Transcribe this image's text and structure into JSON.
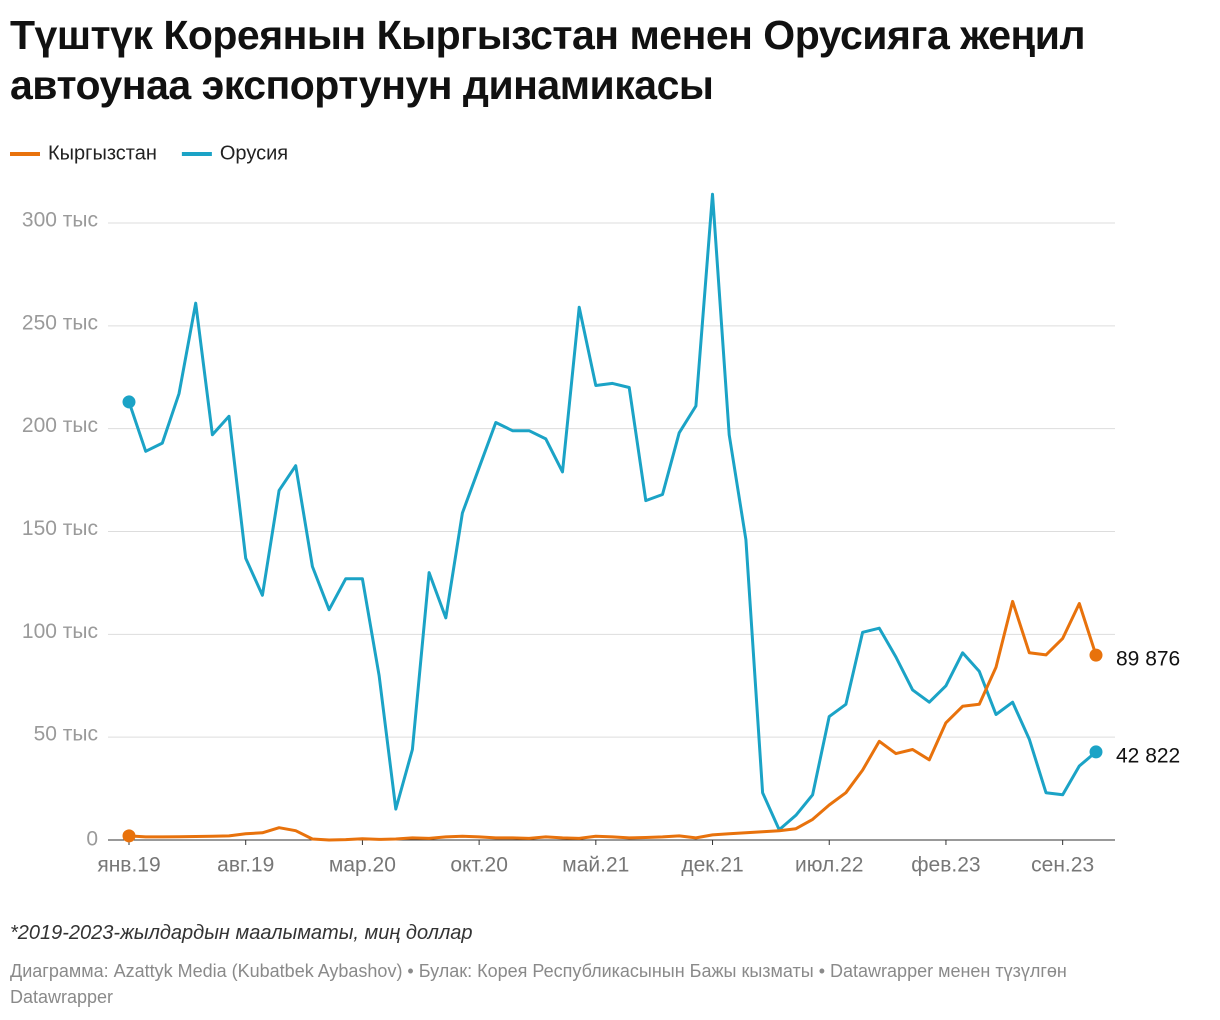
{
  "chart_data": {
    "type": "line",
    "title": "Түштүк Кореянын Кыргызстан менен Орусияга жеңил автоунаа экспортунун динамикасы",
    "note": "*2019-2023-жылдардын маалыматы, миң доллар",
    "credit": "Диаграмма: Azattyk Media (Kubatbek Aybashov) • Булак: Корея Республикасынын Бажы кызматы • Datawrapper менен түзүлгөн Datawrapper",
    "categories": [
      "янв.19",
      null,
      null,
      null,
      null,
      null,
      null,
      "авг.19",
      null,
      null,
      null,
      null,
      null,
      null,
      "мар.20",
      null,
      null,
      null,
      null,
      null,
      null,
      "окт.20",
      null,
      null,
      null,
      null,
      null,
      null,
      "май.21",
      null,
      null,
      null,
      null,
      null,
      null,
      "дек.21",
      null,
      null,
      null,
      null,
      null,
      null,
      "июл.22",
      null,
      null,
      null,
      null,
      null,
      null,
      "фев.23",
      null,
      null,
      null,
      null,
      null,
      null,
      "сен.23",
      null,
      null
    ],
    "series": [
      {
        "name": "Кыргызстан",
        "color": "#e8720c",
        "end_label": "89 876",
        "values": [
          2000,
          1500,
          1500,
          1600,
          1700,
          1800,
          2000,
          3000,
          3500,
          6000,
          4500,
          500,
          0,
          200,
          600,
          300,
          500,
          1000,
          800,
          1500,
          1800,
          1500,
          1000,
          1000,
          800,
          1500,
          1000,
          800,
          1800,
          1500,
          1000,
          1200,
          1500,
          2000,
          1000,
          2500,
          3000,
          3500,
          4000,
          4500,
          5500,
          10000,
          17000,
          23000,
          34000,
          48000,
          42000,
          44000,
          39000,
          57000,
          65000,
          66000,
          84000,
          116000,
          91000,
          90000,
          98000,
          115000,
          89876
        ]
      },
      {
        "name": "Орусия",
        "color": "#1ba3c6",
        "end_label": "42 822",
        "values": [
          213000,
          189000,
          193000,
          217000,
          261000,
          197000,
          206000,
          137000,
          119000,
          170000,
          182000,
          133000,
          112000,
          127000,
          127000,
          80000,
          15000,
          44000,
          130000,
          108000,
          159000,
          181000,
          203000,
          199000,
          199000,
          195000,
          179000,
          259000,
          221000,
          222000,
          220000,
          165000,
          168000,
          198000,
          211000,
          314000,
          197000,
          146000,
          23000,
          5000,
          12000,
          22000,
          60000,
          66000,
          101000,
          103000,
          89000,
          73000,
          67000,
          75000,
          91000,
          82000,
          61000,
          67000,
          49000,
          23000,
          22000,
          36000,
          42822
        ]
      }
    ],
    "ylim": [
      0,
      300000
    ],
    "yticks": [
      0,
      {
        "value": 50000,
        "label": "50 тыс"
      },
      {
        "value": 100000,
        "label": "100 тыс"
      },
      {
        "value": 150000,
        "label": "150 тыс"
      },
      {
        "value": 200000,
        "label": "200 тыс"
      },
      {
        "value": 250000,
        "label": "250 тыс"
      },
      {
        "value": 300000,
        "label": "300 тыс"
      }
    ],
    "grid": true
  }
}
